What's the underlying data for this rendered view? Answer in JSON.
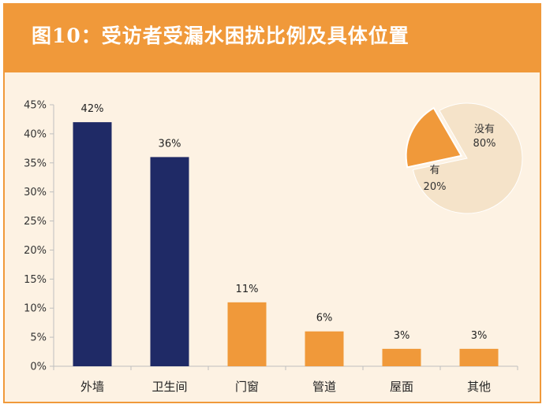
{
  "header": {
    "title": "图10：受访者受漏水困扰比例及具体位置"
  },
  "colors": {
    "header_bg": "#f0993a",
    "panel_bg": "#fdf2e3",
    "bar_dark": "#1f2a66",
    "bar_orange": "#f0993a",
    "pie_main": "#f5e3c9",
    "pie_slice": "#f0993a"
  },
  "chart_data": [
    {
      "type": "bar",
      "categories": [
        "外墙",
        "卫生间",
        "门窗",
        "管道",
        "屋面",
        "其他"
      ],
      "values": [
        42,
        36,
        11,
        6,
        3,
        3
      ],
      "value_labels": [
        "42%",
        "36%",
        "11%",
        "6%",
        "3%",
        "3%"
      ],
      "bar_colors": [
        "#1f2a66",
        "#1f2a66",
        "#f0993a",
        "#f0993a",
        "#f0993a",
        "#f0993a"
      ],
      "ylim": [
        0,
        45
      ],
      "yticks": [
        0,
        5,
        10,
        15,
        20,
        25,
        30,
        35,
        40,
        45
      ],
      "ytick_labels": [
        "0%",
        "5%",
        "10%",
        "15%",
        "20%",
        "25%",
        "30%",
        "35%",
        "40%",
        "45%"
      ],
      "grid": false,
      "title": "",
      "xlabel": "",
      "ylabel": ""
    },
    {
      "type": "pie",
      "slices": [
        {
          "label": "没有",
          "value": 80,
          "value_label": "80%",
          "color": "#f5e3c9"
        },
        {
          "label": "有",
          "value": 20,
          "value_label": "20%",
          "color": "#f0993a",
          "exploded": true
        }
      ]
    }
  ]
}
